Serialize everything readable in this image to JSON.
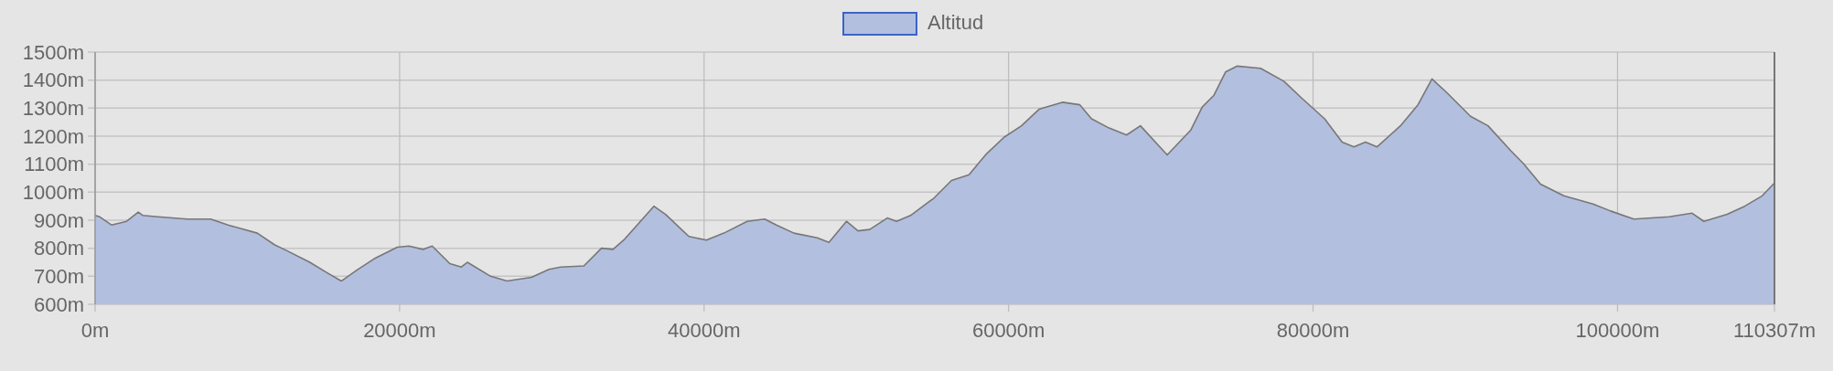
{
  "chart_data": {
    "type": "area",
    "legend": "top",
    "grid": true,
    "xlim": [
      0,
      110307
    ],
    "xticks": [
      {
        "value": 0,
        "label": "0m"
      },
      {
        "value": 20000,
        "label": "20000m"
      },
      {
        "value": 40000,
        "label": "40000m"
      },
      {
        "value": 60000,
        "label": "60000m"
      },
      {
        "value": 80000,
        "label": "80000m"
      },
      {
        "value": 100000,
        "label": "100000m"
      },
      {
        "value": 110307,
        "label": "110307m"
      }
    ],
    "ylim": [
      600,
      1500
    ],
    "yticks": [
      {
        "value": 600,
        "label": "600m"
      },
      {
        "value": 700,
        "label": "700m"
      },
      {
        "value": 800,
        "label": "800m"
      },
      {
        "value": 900,
        "label": "900m"
      },
      {
        "value": 1000,
        "label": "1000m"
      },
      {
        "value": 1100,
        "label": "1100m"
      },
      {
        "value": 1200,
        "label": "1200m"
      },
      {
        "value": 1300,
        "label": "1300m"
      },
      {
        "value": 1400,
        "label": "1400m"
      },
      {
        "value": 1500,
        "label": "1500m"
      }
    ],
    "series": [
      {
        "name": "Altitud",
        "color": "#b3bfdf",
        "x": [
          0,
          306,
          1073,
          2069,
          2835,
          3141,
          4138,
          6054,
          7586,
          8736,
          10650,
          11800,
          12570,
          14100,
          15250,
          16170,
          17165,
          18315,
          19850,
          20610,
          21530,
          22140,
          23300,
          24060,
          24450,
          25980,
          27050,
          28660,
          29810,
          30580,
          32100,
          33260,
          34020,
          34790,
          36700,
          37470,
          39000,
          40150,
          41300,
          42830,
          43980,
          44750,
          45900,
          47430,
          48200,
          49350,
          50110,
          50880,
          52030,
          52640,
          53560,
          55100,
          56250,
          57400,
          58550,
          59700,
          60850,
          62000,
          63530,
          64680,
          65450,
          66600,
          67750,
          68660,
          70420,
          71960,
          72720,
          73490,
          74250,
          75020,
          76550,
          78080,
          79230,
          80760,
          81910,
          82680,
          83440,
          84210,
          85740,
          86890,
          87810,
          88810,
          90340,
          91490,
          93020,
          93790,
          94940,
          96470,
          98390,
          99540,
          101070,
          103370,
          104900,
          105670,
          107200,
          108350,
          109500,
          110307
        ],
        "values": [
          917,
          912,
          883,
          896,
          929,
          917,
          912,
          904,
          904,
          883,
          854,
          812,
          792,
          750,
          712,
          683,
          721,
          762,
          804,
          808,
          796,
          808,
          745,
          733,
          750,
          700,
          683,
          696,
          725,
          733,
          737,
          800,
          796,
          833,
          950,
          921,
          842,
          829,
          854,
          896,
          904,
          883,
          854,
          837,
          821,
          896,
          862,
          867,
          908,
          896,
          917,
          979,
          1042,
          1062,
          1137,
          1196,
          1237,
          1296,
          1321,
          1312,
          1262,
          1229,
          1204,
          1237,
          1133,
          1221,
          1304,
          1346,
          1429,
          1450,
          1442,
          1396,
          1337,
          1262,
          1179,
          1162,
          1179,
          1162,
          1237,
          1312,
          1404,
          1354,
          1271,
          1237,
          1146,
          1104,
          1029,
          987,
          958,
          933,
          904,
          912,
          925,
          896,
          921,
          950,
          987,
          1033
        ]
      }
    ]
  }
}
